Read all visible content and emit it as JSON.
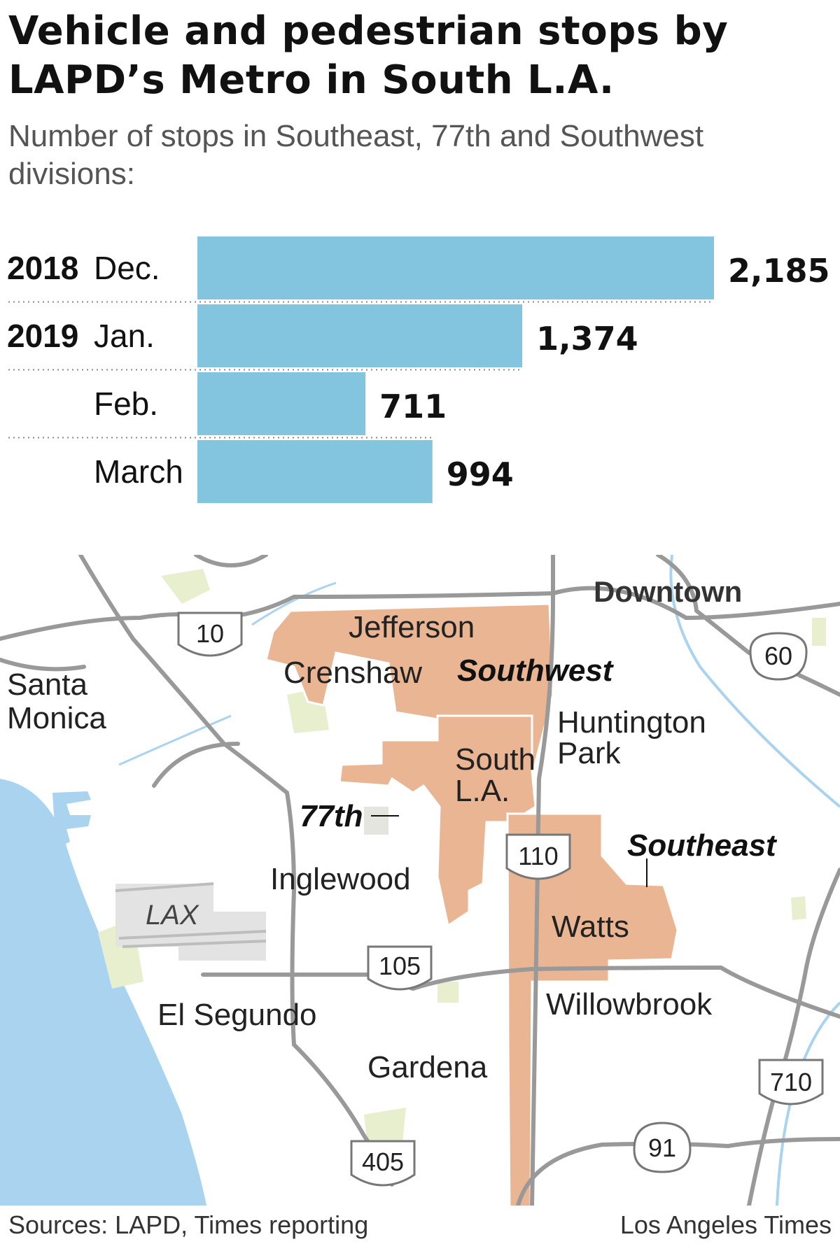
{
  "header": {
    "title": "Vehicle and pedestrian stops by LAPD’s Metro in South L.A.",
    "subtitle": "Number of stops in Southeast, 77th and Southwest divisions:"
  },
  "chart_data": {
    "type": "bar",
    "orientation": "horizontal",
    "categories": [
      "Dec.",
      "Jan.",
      "Feb.",
      "March"
    ],
    "year_labels": [
      "2018",
      "2019",
      "",
      ""
    ],
    "values": [
      2185,
      1374,
      711,
      994
    ],
    "value_labels": [
      "2,185",
      "1,374",
      "711",
      "994"
    ],
    "xlim": [
      0,
      2185
    ],
    "bar_color": "#83c5df"
  },
  "map": {
    "labels": {
      "downtown": "Downtown",
      "jefferson": "Jefferson",
      "crenshaw": "Crenshaw",
      "southwest": "Southwest",
      "santa_monica_1": "Santa",
      "santa_monica_2": "Monica",
      "huntington_1": "Huntington",
      "huntington_2": "Park",
      "south_la_1": "South",
      "south_la_2": "L.A.",
      "seventy_seventh": "77th",
      "southeast": "Southeast",
      "inglewood": "Inglewood",
      "lax": "LAX",
      "watts": "Watts",
      "willowbrook": "Willowbrook",
      "el_segundo": "El Segundo",
      "gardena": "Gardena"
    },
    "shields": {
      "i10": "10",
      "i60": "60",
      "i110": "110",
      "i105": "105",
      "i710": "710",
      "i91": "91",
      "i405": "405"
    },
    "colors": {
      "division_fill": "#e9b593",
      "water": "#a9d3ef",
      "road": "#999999",
      "park": "#e8efcf"
    }
  },
  "footer": {
    "source": "Sources: LAPD, Times reporting",
    "credit": "Los Angeles Times"
  }
}
